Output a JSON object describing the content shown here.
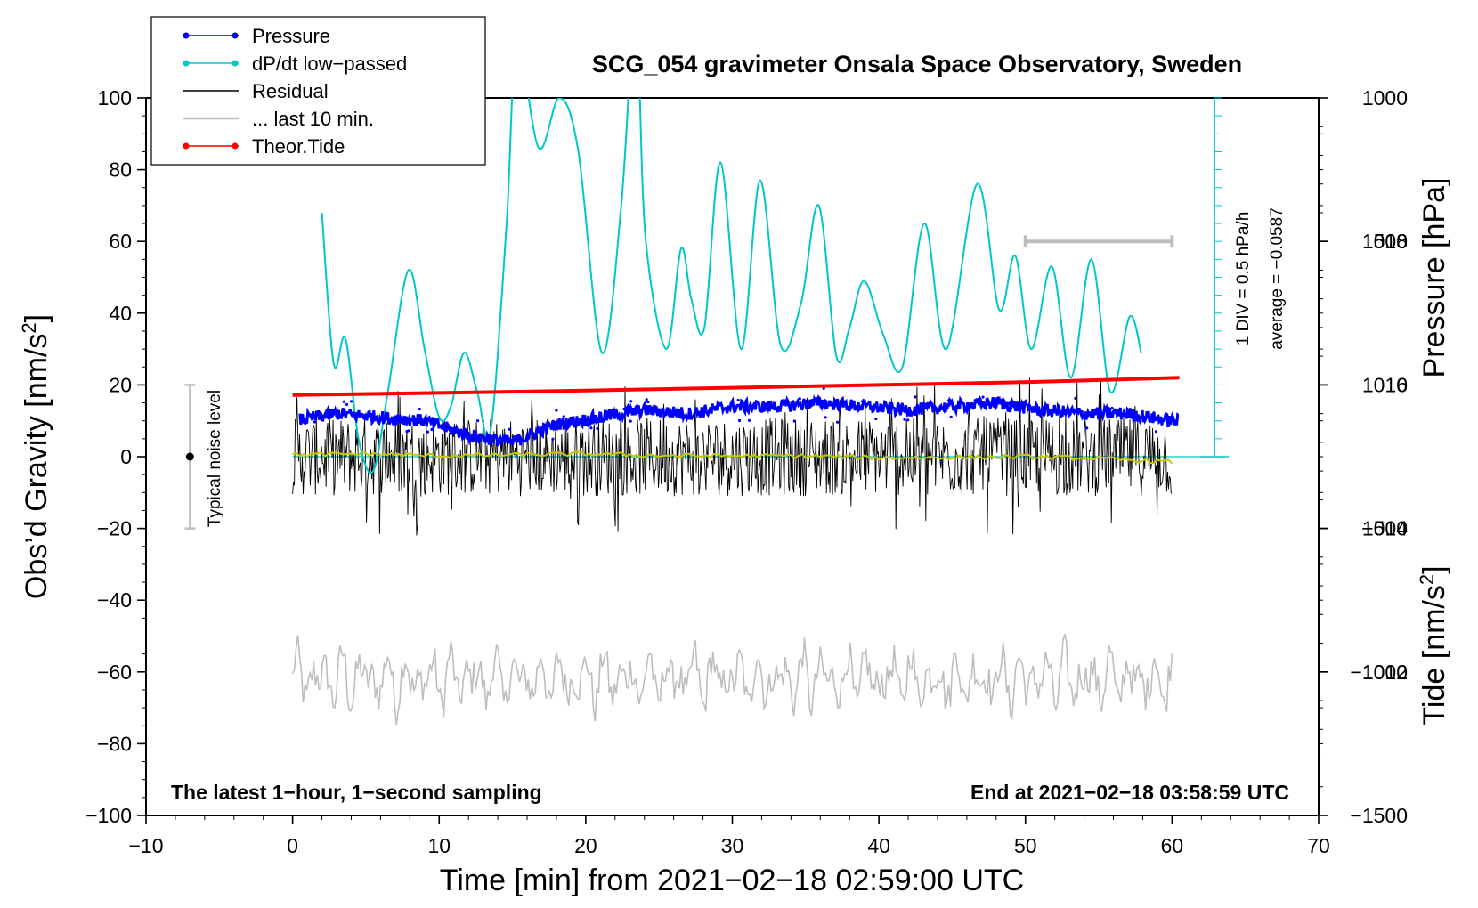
{
  "chart_data": {
    "type": "line",
    "title": "SCG_054 gravimeter Onsala Space Observatory, Sweden",
    "xlabel": "Time [min] from 2021−02−18 02:59:00 UTC",
    "ylabel_left": "Obs’d Gravity [nm/s",
    "ylabel_left_sup": "2",
    "ylabel_left_tail": "]",
    "ylabel_pressure": "Pressure [hPa]",
    "ylabel_tide": "Tide [nm/s",
    "ylabel_tide_sup": "2",
    "ylabel_tide_tail": "]",
    "xlim": [
      -10,
      70
    ],
    "ylim_left": [
      -100,
      100
    ],
    "pressure_ylim": [
      1010,
      1020
    ],
    "tide_ylim": [
      -1500,
      1000
    ],
    "x_ticks": [
      "−10",
      "0",
      "10",
      "20",
      "30",
      "40",
      "50",
      "60",
      "70"
    ],
    "x_tick_values": [
      -10,
      0,
      10,
      20,
      30,
      40,
      50,
      60,
      70
    ],
    "y_ticks": [
      "−100",
      "−80",
      "−60",
      "−40",
      "−20",
      "0",
      "20",
      "40",
      "60",
      "80",
      "100"
    ],
    "y_tick_values": [
      -100,
      -80,
      -60,
      -40,
      -20,
      0,
      20,
      40,
      60,
      80,
      100
    ],
    "pressure_ticks": [
      "1012",
      "1014",
      "1016",
      "1018"
    ],
    "pressure_tick_values": [
      1012,
      1014,
      1016,
      1018
    ],
    "tide_ticks": [
      "1000",
      "500",
      "0",
      "−500",
      "−1000",
      "−1500"
    ],
    "tide_tick_values": [
      1000,
      500,
      0,
      -500,
      -1000,
      -1500
    ],
    "legend": [
      {
        "label": "Pressure",
        "color": "#0000ff",
        "marker": true
      },
      {
        "label": "dP/dt low−passed",
        "color": "#00c8c8",
        "marker": true
      },
      {
        "label": "Residual",
        "color": "#000000",
        "marker": false
      },
      {
        "label": "... last 10 min.",
        "color": "#bebebe",
        "marker": false
      },
      {
        "label": "Theor.Tide",
        "color": "#ff0000",
        "marker": true
      }
    ],
    "annotations": {
      "bottom_left": "The latest 1−hour, 1−second sampling",
      "bottom_right": "End at 2021−02−18 03:58:59 UTC",
      "noise_label": "Typical noise level",
      "dpdt_scale": "1 DIV = 0.5 hPa/h",
      "dpdt_average": "average = −0.0587"
    },
    "noise_bar": {
      "x": -7,
      "y_center": 0,
      "y_low": -20,
      "y_high": 20
    },
    "last10_bar": {
      "x_start": 50,
      "x_end": 60,
      "tide": 500
    },
    "pressure_reference_line": 1015,
    "dpdt_scale_axis": {
      "x": 62.9,
      "y_low": 0,
      "y_high": 100,
      "divisions": 20
    },
    "series": [
      {
        "name": "Pressure",
        "axis": "pressure",
        "color": "#0000ff",
        "x": [
          0,
          3,
          6,
          9,
          12,
          15,
          18,
          21,
          24,
          27,
          30,
          33,
          36,
          39,
          42,
          45,
          48,
          51,
          54,
          57,
          60
        ],
        "values": [
          1015.5,
          1015.6,
          1015.55,
          1015.5,
          1015.3,
          1015.2,
          1015.45,
          1015.55,
          1015.65,
          1015.6,
          1015.7,
          1015.7,
          1015.75,
          1015.7,
          1015.65,
          1015.7,
          1015.75,
          1015.65,
          1015.6,
          1015.6,
          1015.5
        ]
      },
      {
        "name": "dP/dt low−passed",
        "axis": "left",
        "color": "#00c8c8",
        "x": [
          2,
          2.8,
          3.6,
          4.5,
          5.5,
          6.5,
          7.9,
          9,
          10,
          10.8,
          11.7,
          12.6,
          13.5,
          14.6,
          15.3,
          16.8,
          18.2,
          19.5,
          21.1,
          22.4,
          23.2,
          23.6,
          24.1,
          25.5,
          26.5,
          27.2,
          28.1,
          29.2,
          30.6,
          31.9,
          33.3,
          34.7,
          35.9,
          37.1,
          38,
          39,
          40.3,
          41.6,
          43.1,
          44.6,
          46.7,
          48.2,
          49.3,
          50.4,
          51.8,
          53.1,
          54.5,
          55.8,
          57.1,
          57.9
        ],
        "values": [
          68,
          26,
          33,
          5,
          -4,
          18,
          52,
          30,
          11,
          14,
          29,
          18,
          7,
          65,
          115,
          86,
          100,
          85,
          29,
          69,
          118,
          110,
          60,
          30,
          58,
          44,
          36,
          82,
          30,
          77,
          31,
          43,
          70,
          28,
          36,
          49,
          34,
          25,
          65,
          30,
          76,
          41,
          56,
          30,
          53,
          22,
          55,
          18,
          39,
          29
        ]
      },
      {
        "name": "Residual",
        "axis": "left",
        "color": "#000000",
        "x": [
          0,
          60
        ],
        "values": [
          0,
          0
        ]
      },
      {
        "name": "Residual smoothed",
        "axis": "left",
        "color": "#c8c800",
        "x": [
          0,
          5,
          10,
          15,
          20,
          25,
          30,
          35,
          40,
          45,
          50,
          55,
          60
        ],
        "values": [
          0.5,
          0.8,
          0.2,
          0.5,
          0.8,
          0.3,
          0.2,
          0.2,
          -0.3,
          -0.2,
          0.0,
          -0.5,
          -1.5
        ]
      },
      {
        "name": "... last 10 min.",
        "axis": "left",
        "color": "#bebebe",
        "x": [
          0,
          60
        ],
        "values": [
          -62,
          -62
        ]
      },
      {
        "name": "Theor.Tide",
        "axis": "tide",
        "color": "#ff0000",
        "x": [
          0,
          10,
          20,
          30,
          40,
          50,
          60.5
        ],
        "values": [
          -35,
          -28,
          -20,
          -10,
          0,
          10,
          25
        ]
      }
    ]
  }
}
